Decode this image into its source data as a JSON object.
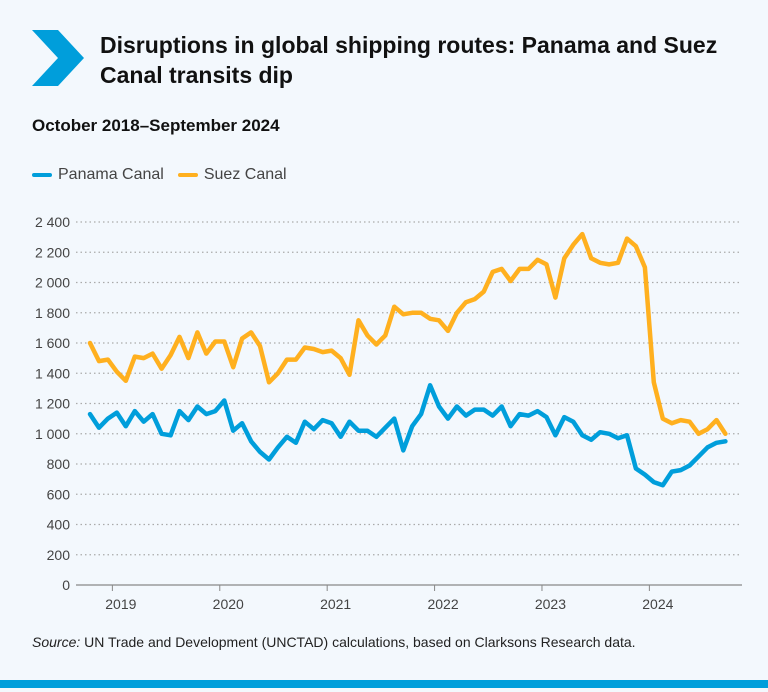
{
  "title": "Disruptions in global shipping routes: Panama and Suez Canal transits dip",
  "subtitle": "October 2018–September 2024",
  "source_label": "Source:",
  "source_text": " UN Trade and Development (UNCTAD) calculations, based on Clarksons Research data.",
  "colors": {
    "panama": "#009edb",
    "suez": "#ffb01f",
    "logo": "#009edb",
    "grid": "#aaaaaa"
  },
  "chart_data": {
    "type": "line",
    "title": "Disruptions in global shipping routes: Panama and Suez Canal transits dip",
    "subtitle": "October 2018–September 2024",
    "x_start": "2018-10",
    "x_end": "2024-09",
    "x_frequency": "monthly",
    "xtick_labels": [
      "2019",
      "2020",
      "2021",
      "2022",
      "2023",
      "2024"
    ],
    "ylim": [
      0,
      2400
    ],
    "ytick_labels": [
      "0",
      "200",
      "400",
      "600",
      "800",
      "1 000",
      "1 200",
      "1 400",
      "1 600",
      "1 800",
      "2 000",
      "2 200",
      "2 400"
    ],
    "yticks": [
      0,
      200,
      400,
      600,
      800,
      1000,
      1200,
      1400,
      1600,
      1800,
      2000,
      2200,
      2400
    ],
    "grid": "horizontal dotted",
    "legend_placement": "top-left",
    "series": [
      {
        "name": "Panama Canal",
        "color": "#009edb",
        "values": [
          1130,
          1040,
          1100,
          1140,
          1050,
          1150,
          1080,
          1130,
          1000,
          990,
          1150,
          1090,
          1180,
          1130,
          1150,
          1220,
          1020,
          1070,
          950,
          880,
          830,
          910,
          980,
          940,
          1080,
          1030,
          1090,
          1070,
          980,
          1080,
          1020,
          1020,
          980,
          1040,
          1100,
          890,
          1050,
          1130,
          1320,
          1180,
          1100,
          1180,
          1120,
          1160,
          1160,
          1120,
          1180,
          1050,
          1130,
          1120,
          1150,
          1110,
          990,
          1110,
          1080,
          990,
          960,
          1010,
          1000,
          970,
          990,
          770,
          730,
          680,
          660,
          750,
          760,
          790,
          850,
          910,
          940,
          950
        ]
      },
      {
        "name": "Suez Canal",
        "color": "#ffb01f",
        "values": [
          1600,
          1480,
          1490,
          1410,
          1350,
          1510,
          1500,
          1530,
          1430,
          1520,
          1640,
          1500,
          1670,
          1530,
          1610,
          1610,
          1440,
          1630,
          1670,
          1580,
          1340,
          1400,
          1490,
          1490,
          1570,
          1560,
          1540,
          1550,
          1500,
          1390,
          1750,
          1650,
          1590,
          1650,
          1840,
          1790,
          1800,
          1800,
          1760,
          1750,
          1680,
          1800,
          1870,
          1890,
          1940,
          2070,
          2090,
          2010,
          2090,
          2090,
          2150,
          2120,
          1900,
          2160,
          2250,
          2320,
          2160,
          2130,
          2120,
          2130,
          2290,
          2240,
          2100,
          1340,
          1100,
          1070,
          1090,
          1080,
          1000,
          1030,
          1090,
          1000
        ]
      }
    ]
  }
}
